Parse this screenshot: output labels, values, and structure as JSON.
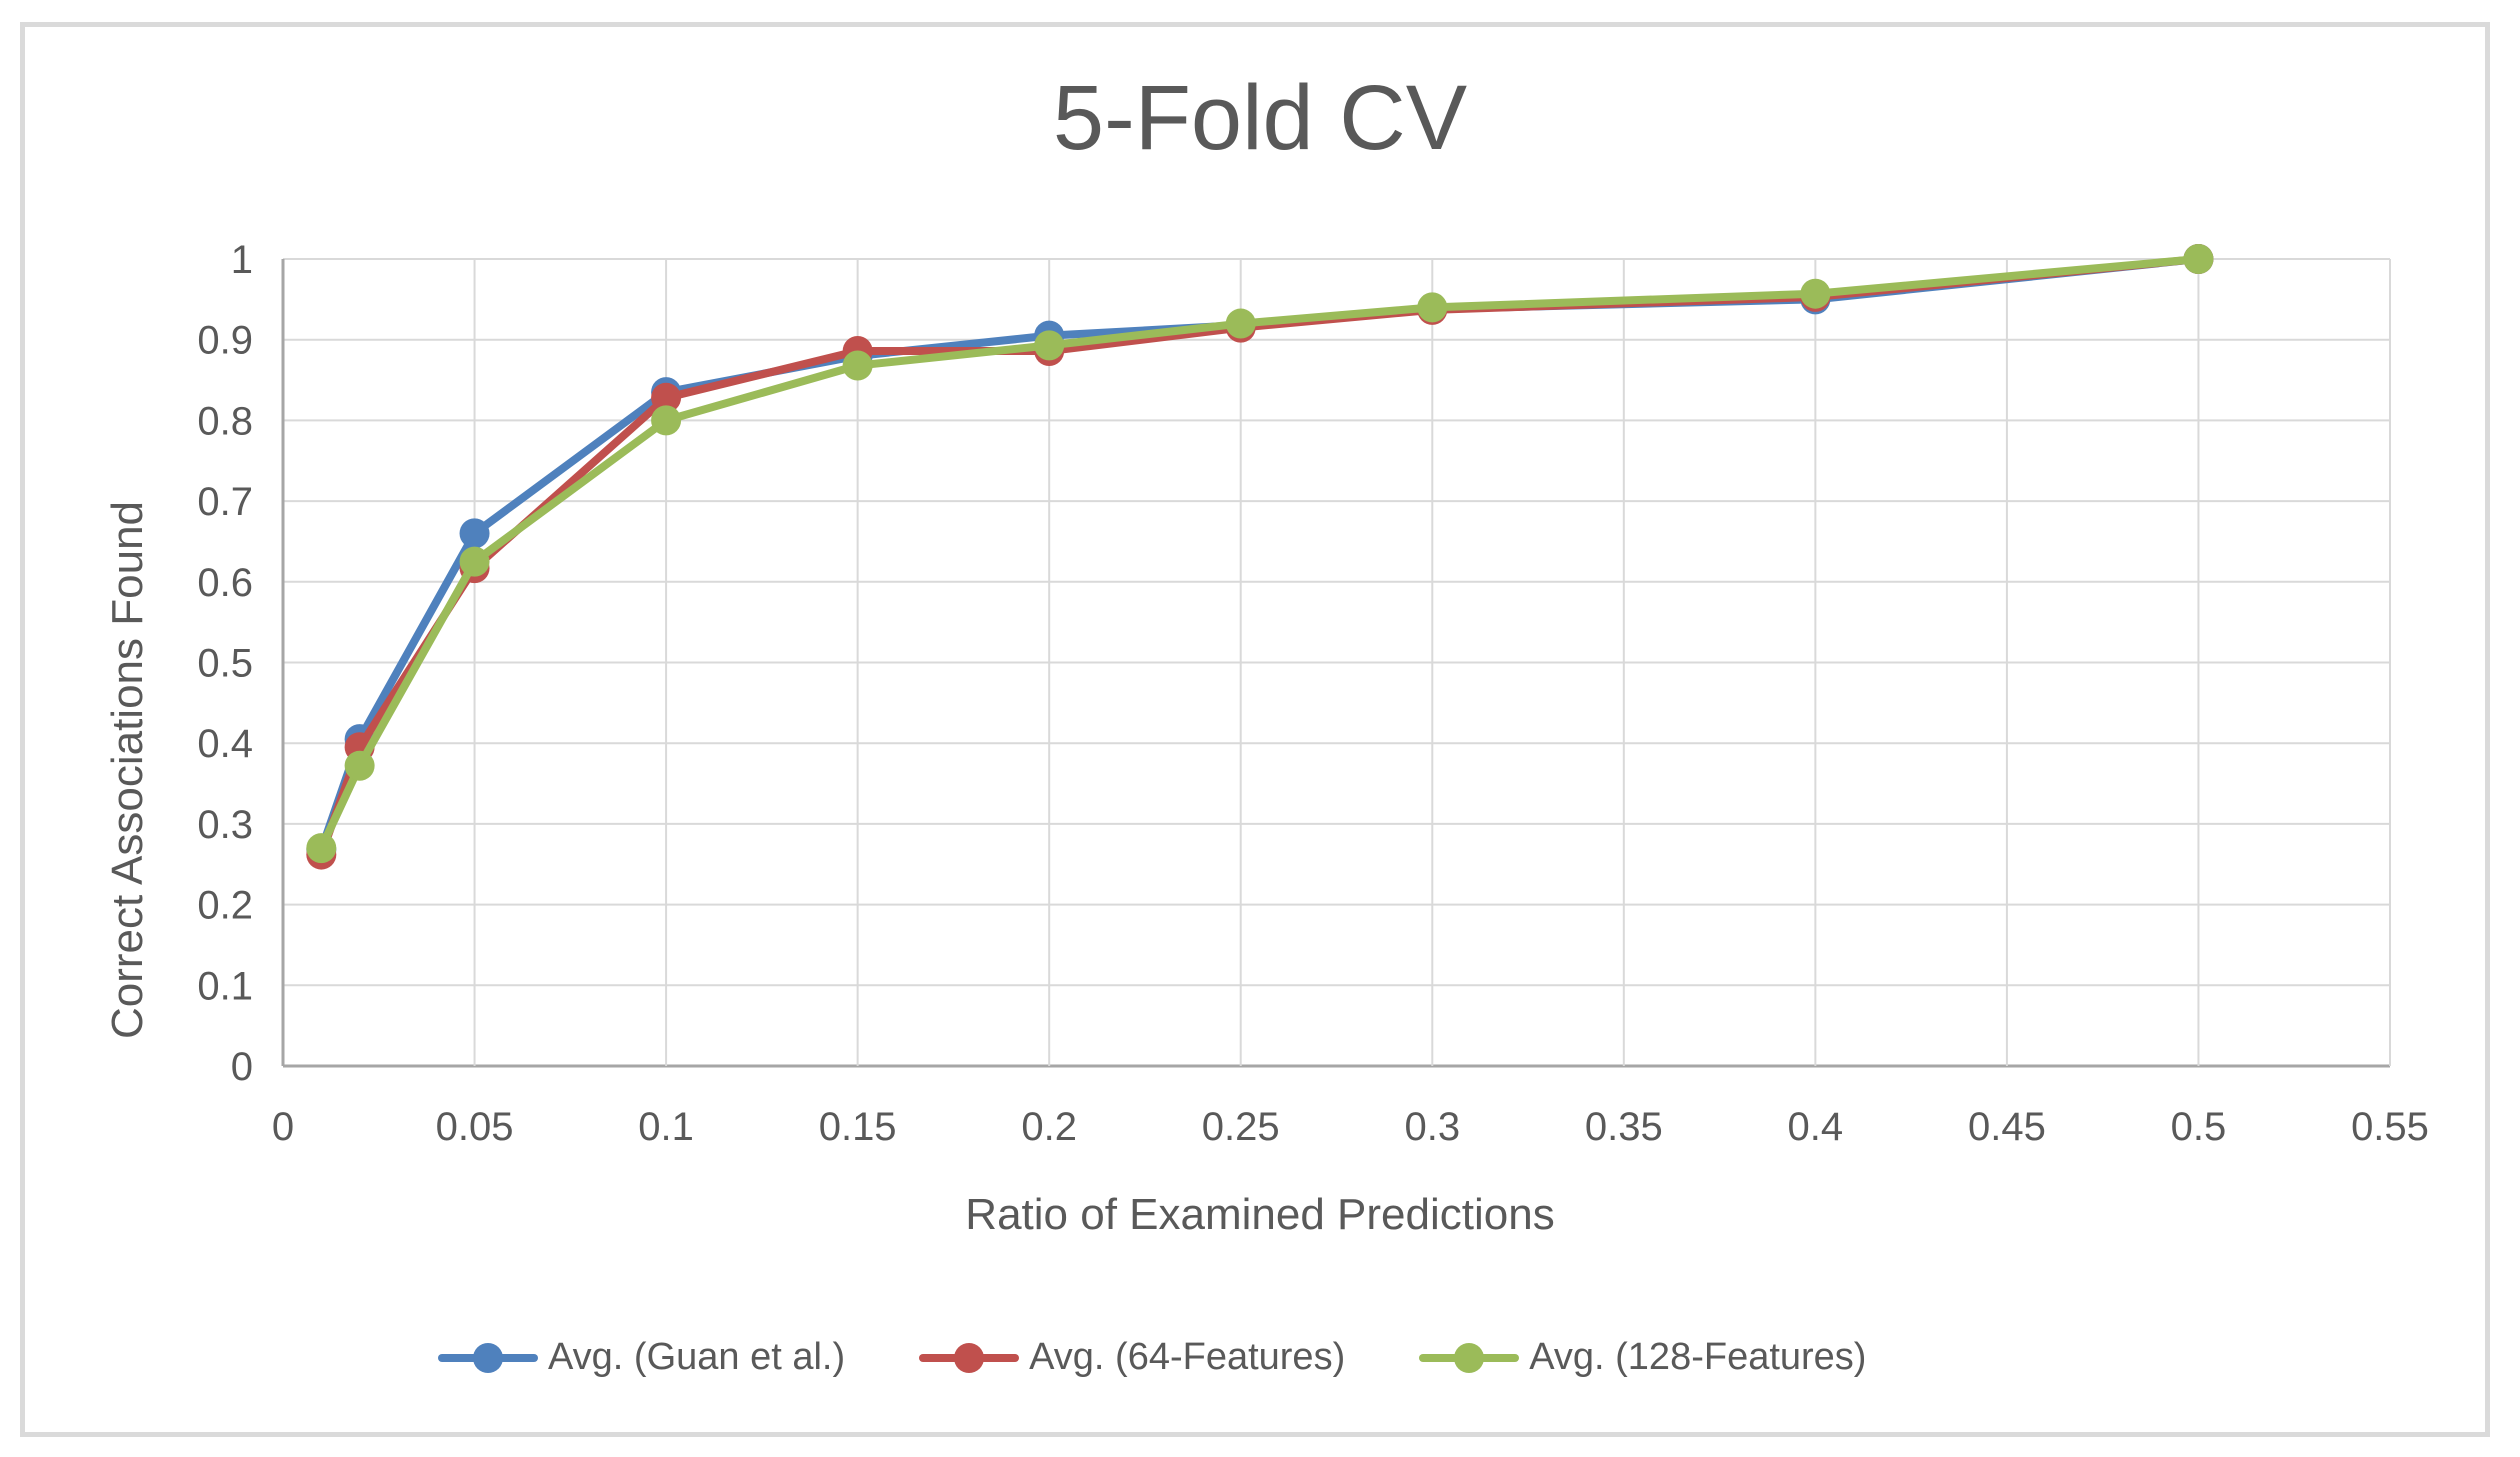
{
  "chart_data": {
    "type": "line",
    "title": "5-Fold CV",
    "xlabel": "Ratio of Examined Predictions",
    "ylabel": "Correct Associations Found",
    "xlim": [
      0,
      0.55
    ],
    "ylim": [
      0,
      1
    ],
    "grid": true,
    "legend_position": "bottom",
    "x_ticks": [
      0,
      0.05,
      0.1,
      0.15,
      0.2,
      0.25,
      0.3,
      0.35,
      0.4,
      0.45,
      0.5,
      0.55
    ],
    "x_tick_labels": [
      "0",
      "0.05",
      "0.1",
      "0.15",
      "0.2",
      "0.25",
      "0.3",
      "0.35",
      "0.4",
      "0.45",
      "0.5",
      "0.55"
    ],
    "y_ticks": [
      0,
      0.1,
      0.2,
      0.3,
      0.4,
      0.5,
      0.6,
      0.7,
      0.8,
      0.9,
      1
    ],
    "y_tick_labels": [
      "0",
      "0.1",
      "0.2",
      "0.3",
      "0.4",
      "0.5",
      "0.6",
      "0.7",
      "0.8",
      "0.9",
      "1"
    ],
    "x": [
      0.01,
      0.02,
      0.05,
      0.1,
      0.15,
      0.2,
      0.25,
      0.3,
      0.4,
      0.5
    ],
    "series": [
      {
        "name": "Avg. (Guan et al.)",
        "color": "#4F81BD",
        "marker": "circle",
        "values": [
          0.268,
          0.405,
          0.66,
          0.835,
          0.88,
          0.905,
          0.918,
          0.938,
          0.95,
          1.0
        ]
      },
      {
        "name": "Avg. (64-Features)",
        "color": "#C0504D",
        "marker": "circle",
        "values": [
          0.262,
          0.395,
          0.617,
          0.828,
          0.886,
          0.886,
          0.915,
          0.937,
          0.953,
          1.0
        ]
      },
      {
        "name": "Avg. (128-Features)",
        "color": "#9BBB59",
        "marker": "circle",
        "values": [
          0.27,
          0.372,
          0.625,
          0.8,
          0.868,
          0.893,
          0.92,
          0.94,
          0.957,
          1.0
        ]
      }
    ],
    "colors": {
      "text": "#595959",
      "gridline": "#d9d9d9",
      "axis_line": "#a6a6a6",
      "frame_border": "#dadada",
      "background": "#ffffff"
    }
  }
}
